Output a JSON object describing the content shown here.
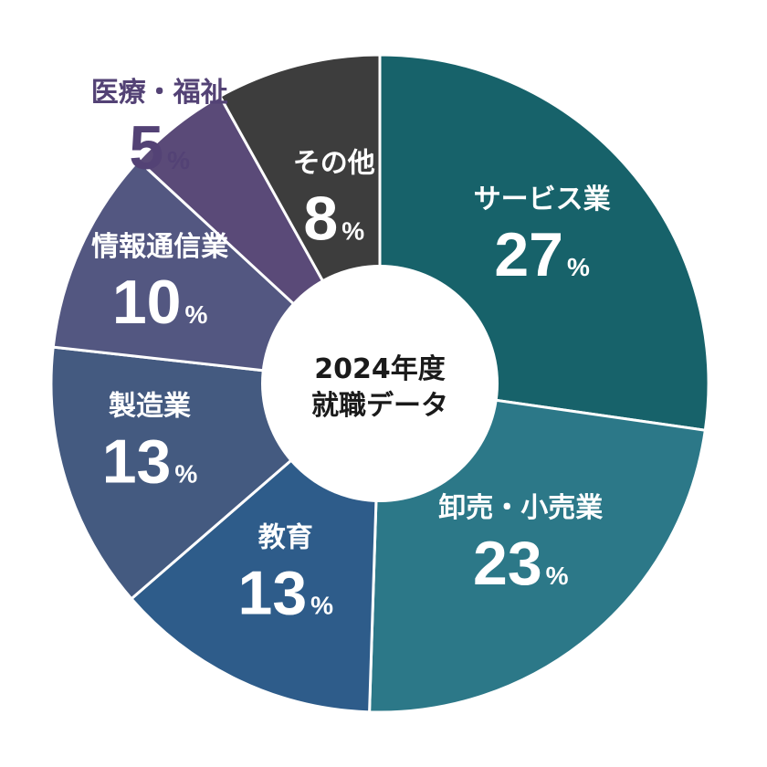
{
  "chart_data": {
    "type": "pie",
    "title": "2024年度就職データ",
    "center_label_lines": [
      "2024年度",
      "就職データ"
    ],
    "unit": "%",
    "slices": [
      {
        "label": "サービス業",
        "value": 27,
        "color": "#17626a",
        "label_color": "#ffffff"
      },
      {
        "label": "卸売・小売業",
        "value": 23,
        "color": "#2c7888",
        "label_color": "#ffffff"
      },
      {
        "label": "教育",
        "value": 13,
        "color": "#2e5c8a",
        "label_color": "#ffffff"
      },
      {
        "label": "製造業",
        "value": 13,
        "color": "#445a80",
        "label_color": "#ffffff"
      },
      {
        "label": "情報通信業",
        "value": 10,
        "color": "#535781",
        "label_color": "#ffffff"
      },
      {
        "label": "医療・福祉",
        "value": 5,
        "color": "#5a4a78",
        "label_color": "#534275"
      },
      {
        "label": "その他",
        "value": 8,
        "color": "#3d3d3d",
        "label_color": "#ffffff"
      }
    ],
    "slice_border_color": "#ffffff",
    "center_fill": "#ffffff",
    "legend": "none"
  }
}
